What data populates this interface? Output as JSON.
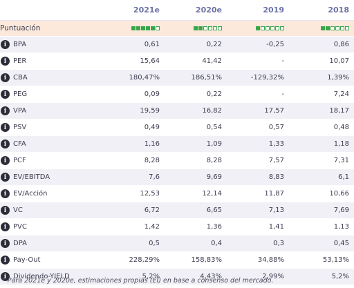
{
  "columns": [
    "2021e",
    "2020e",
    "2019",
    "2018"
  ],
  "score": {
    "label": "Puntuación",
    "levels": [
      5,
      2,
      1,
      2
    ],
    "max": 6,
    "color": "#3aa64a"
  },
  "rows": [
    {
      "label": "BPA",
      "values": [
        "0,61",
        "0,22",
        "-0,25",
        "0,86"
      ]
    },
    {
      "label": "PER",
      "values": [
        "15,64",
        "41,42",
        "-",
        "10,07"
      ]
    },
    {
      "label": "CBA",
      "values": [
        "180,47%",
        "186,51%",
        "-129,32%",
        "1,39%"
      ]
    },
    {
      "label": "PEG",
      "values": [
        "0,09",
        "0,22",
        "-",
        "7,24"
      ]
    },
    {
      "label": "VPA",
      "values": [
        "19,59",
        "16,82",
        "17,57",
        "18,17"
      ]
    },
    {
      "label": "PSV",
      "values": [
        "0,49",
        "0,54",
        "0,57",
        "0,48"
      ]
    },
    {
      "label": "CFA",
      "values": [
        "1,16",
        "1,09",
        "1,33",
        "1,18"
      ]
    },
    {
      "label": "PCF",
      "values": [
        "8,28",
        "8,28",
        "7,57",
        "7,31"
      ]
    },
    {
      "label": "EV/EBITDA",
      "values": [
        "7,6",
        "9,69",
        "8,83",
        "6,1"
      ]
    },
    {
      "label": "EV/Acción",
      "values": [
        "12,53",
        "12,14",
        "11,87",
        "10,66"
      ]
    },
    {
      "label": "VC",
      "values": [
        "6,72",
        "6,65",
        "7,13",
        "7,69"
      ]
    },
    {
      "label": "PVC",
      "values": [
        "1,42",
        "1,36",
        "1,41",
        "1,13"
      ]
    },
    {
      "label": "DPA",
      "values": [
        "0,5",
        "0,4",
        "0,3",
        "0,45"
      ]
    },
    {
      "label": "Pay-Out",
      "values": [
        "228,29%",
        "158,83%",
        "34,88%",
        "53,13%"
      ]
    },
    {
      "label": "Dividendo-YIELD",
      "values": [
        "5,2%",
        "4,43%",
        "2,99%",
        "5,2%"
      ]
    }
  ],
  "footnote": "* Para 2021e y 2020e, estimaciones propias (EI) en base a consenso del mercado.",
  "info_glyph": "i"
}
